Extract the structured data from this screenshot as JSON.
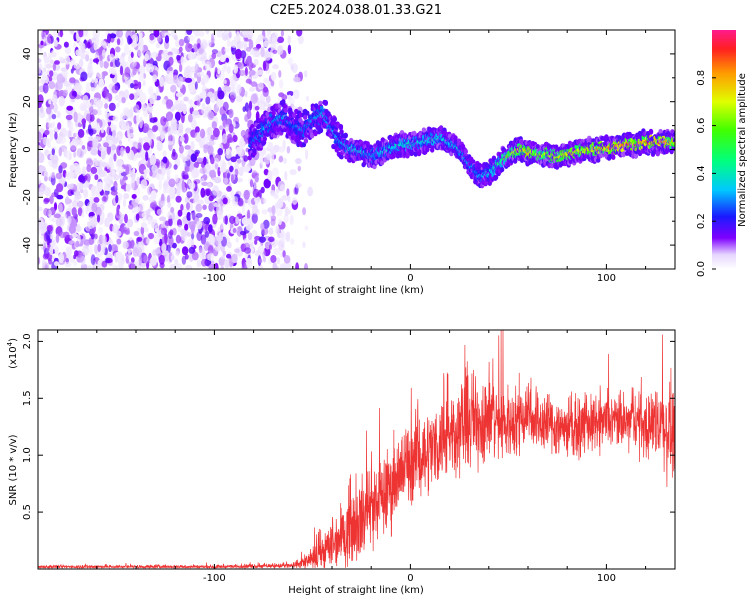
{
  "title": "C2E5.2024.038.01.33.G21",
  "chart_data": [
    {
      "type": "heatmap",
      "title": "C2E5.2024.038.01.33.G21",
      "xlabel": "Height of straight line (km)",
      "ylabel": "Frequency (Hz)",
      "xlim": [
        -190,
        135
      ],
      "ylim": [
        -50,
        50
      ],
      "xticks": [
        -100,
        0,
        100
      ],
      "yticks": [
        -40,
        -20,
        0,
        20,
        40
      ],
      "colorbar": {
        "label": "Normalized spectral amplitude",
        "range": [
          0.0,
          1.0
        ],
        "ticks": [
          "0.0",
          "0.2",
          "0.4",
          "0.6",
          "0.8"
        ]
      },
      "ridge": {
        "x": [
          -82,
          -75,
          -70,
          -65,
          -60,
          -55,
          -50,
          -45,
          -40,
          -35,
          -30,
          -25,
          -20,
          -15,
          -10,
          -5,
          0,
          5,
          10,
          15,
          20,
          25,
          30,
          35,
          40,
          45,
          50,
          55,
          60,
          65,
          70,
          75,
          80,
          85,
          90,
          95,
          100,
          105,
          110,
          115,
          120,
          125,
          130,
          135
        ],
        "y": [
          2,
          8,
          12,
          14,
          10,
          8,
          12,
          15,
          8,
          2,
          0,
          -1,
          -3,
          -1,
          1,
          2,
          2,
          3,
          4,
          5,
          3,
          0,
          -6,
          -11,
          -10,
          -6,
          -2,
          0,
          -1,
          -2,
          -2,
          -3,
          -2,
          -1,
          0,
          0,
          1,
          1,
          2,
          2,
          3,
          3,
          3,
          3
        ],
        "amplitude": [
          0.25,
          0.3,
          0.3,
          0.3,
          0.25,
          0.3,
          0.3,
          0.35,
          0.3,
          0.3,
          0.35,
          0.35,
          0.3,
          0.35,
          0.35,
          0.4,
          0.4,
          0.35,
          0.4,
          0.4,
          0.35,
          0.35,
          0.3,
          0.3,
          0.35,
          0.45,
          0.6,
          0.7,
          0.75,
          0.6,
          0.65,
          0.7,
          0.75,
          0.7,
          0.75,
          0.75,
          0.8,
          0.8,
          0.85,
          0.8,
          0.85,
          0.85,
          0.8,
          0.75
        ]
      },
      "noise_region_x": [
        -190,
        -65
      ]
    },
    {
      "type": "line",
      "xlabel": "Height of straight line (km)",
      "ylabel": "SNR (10 * v/v)",
      "yscale_label": "(x10",
      "yscale_exp": "4",
      "yscale_close": ")",
      "xlim": [
        -190,
        135
      ],
      "ylim": [
        0,
        2.1
      ],
      "xticks": [
        -100,
        0,
        100
      ],
      "yticks": [
        "0.5",
        "1.0",
        "1.5",
        "2.0"
      ],
      "series": [
        {
          "color": "#ee3333",
          "envelope_x": [
            -190,
            -100,
            -60,
            -50,
            -45,
            -40,
            -35,
            -30,
            -25,
            -20,
            -15,
            -10,
            -5,
            0,
            5,
            10,
            15,
            20,
            25,
            30,
            35,
            40,
            45,
            50,
            55,
            60,
            65,
            70,
            75,
            80,
            85,
            90,
            95,
            100,
            105,
            110,
            115,
            120,
            125,
            130,
            135
          ],
          "envelope_mean": [
            0.02,
            0.02,
            0.03,
            0.08,
            0.15,
            0.22,
            0.3,
            0.38,
            0.45,
            0.55,
            0.62,
            0.72,
            0.85,
            0.95,
            1.0,
            1.05,
            1.12,
            1.2,
            1.25,
            1.3,
            1.3,
            1.35,
            1.3,
            1.28,
            1.3,
            1.4,
            1.3,
            1.28,
            1.25,
            1.25,
            1.22,
            1.28,
            1.25,
            1.3,
            1.3,
            1.28,
            1.3,
            1.25,
            1.3,
            1.25,
            1.2
          ],
          "envelope_spread": [
            0.02,
            0.02,
            0.03,
            0.12,
            0.2,
            0.3,
            0.35,
            0.4,
            0.45,
            0.45,
            0.45,
            0.45,
            0.45,
            0.45,
            0.45,
            0.45,
            0.45,
            0.45,
            0.5,
            0.55,
            0.5,
            0.5,
            0.45,
            0.4,
            0.35,
            0.4,
            0.35,
            0.35,
            0.35,
            0.3,
            0.3,
            0.3,
            0.3,
            0.3,
            0.3,
            0.3,
            0.3,
            0.35,
            0.4,
            0.5,
            0.55
          ]
        }
      ]
    }
  ]
}
